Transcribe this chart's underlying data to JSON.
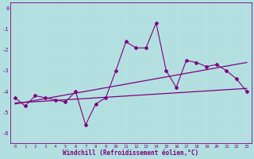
{
  "xlabel": "Windchill (Refroidissement éolien,°C)",
  "background_color": "#b2e0e0",
  "grid_color": "#d0e8e8",
  "line_color": "#800080",
  "hours": [
    0,
    1,
    2,
    3,
    4,
    5,
    6,
    7,
    8,
    9,
    10,
    11,
    12,
    13,
    14,
    15,
    16,
    17,
    18,
    19,
    20,
    21,
    22,
    23
  ],
  "windchill": [
    -4.3,
    -4.7,
    -4.2,
    -4.3,
    -4.4,
    -4.5,
    -4.0,
    -5.6,
    -4.6,
    -4.3,
    -3.0,
    -1.6,
    -1.9,
    -1.9,
    -0.7,
    -3.0,
    -3.8,
    -2.5,
    -2.6,
    -2.8,
    -2.7,
    -3.0,
    -3.4,
    -4.0
  ],
  "trend1_x": [
    0,
    23
  ],
  "trend1_y": [
    -4.55,
    -3.85
  ],
  "trend2_x": [
    0,
    23
  ],
  "trend2_y": [
    -4.6,
    -2.6
  ],
  "ylim": [
    -6.5,
    0.3
  ],
  "xlim": [
    -0.5,
    23.5
  ],
  "yticks": [
    0,
    -1,
    -2,
    -3,
    -4,
    -5,
    -6
  ],
  "ytick_labels": [
    "0",
    "-1",
    "-2",
    "-3",
    "-4",
    "-5",
    "-6"
  ]
}
